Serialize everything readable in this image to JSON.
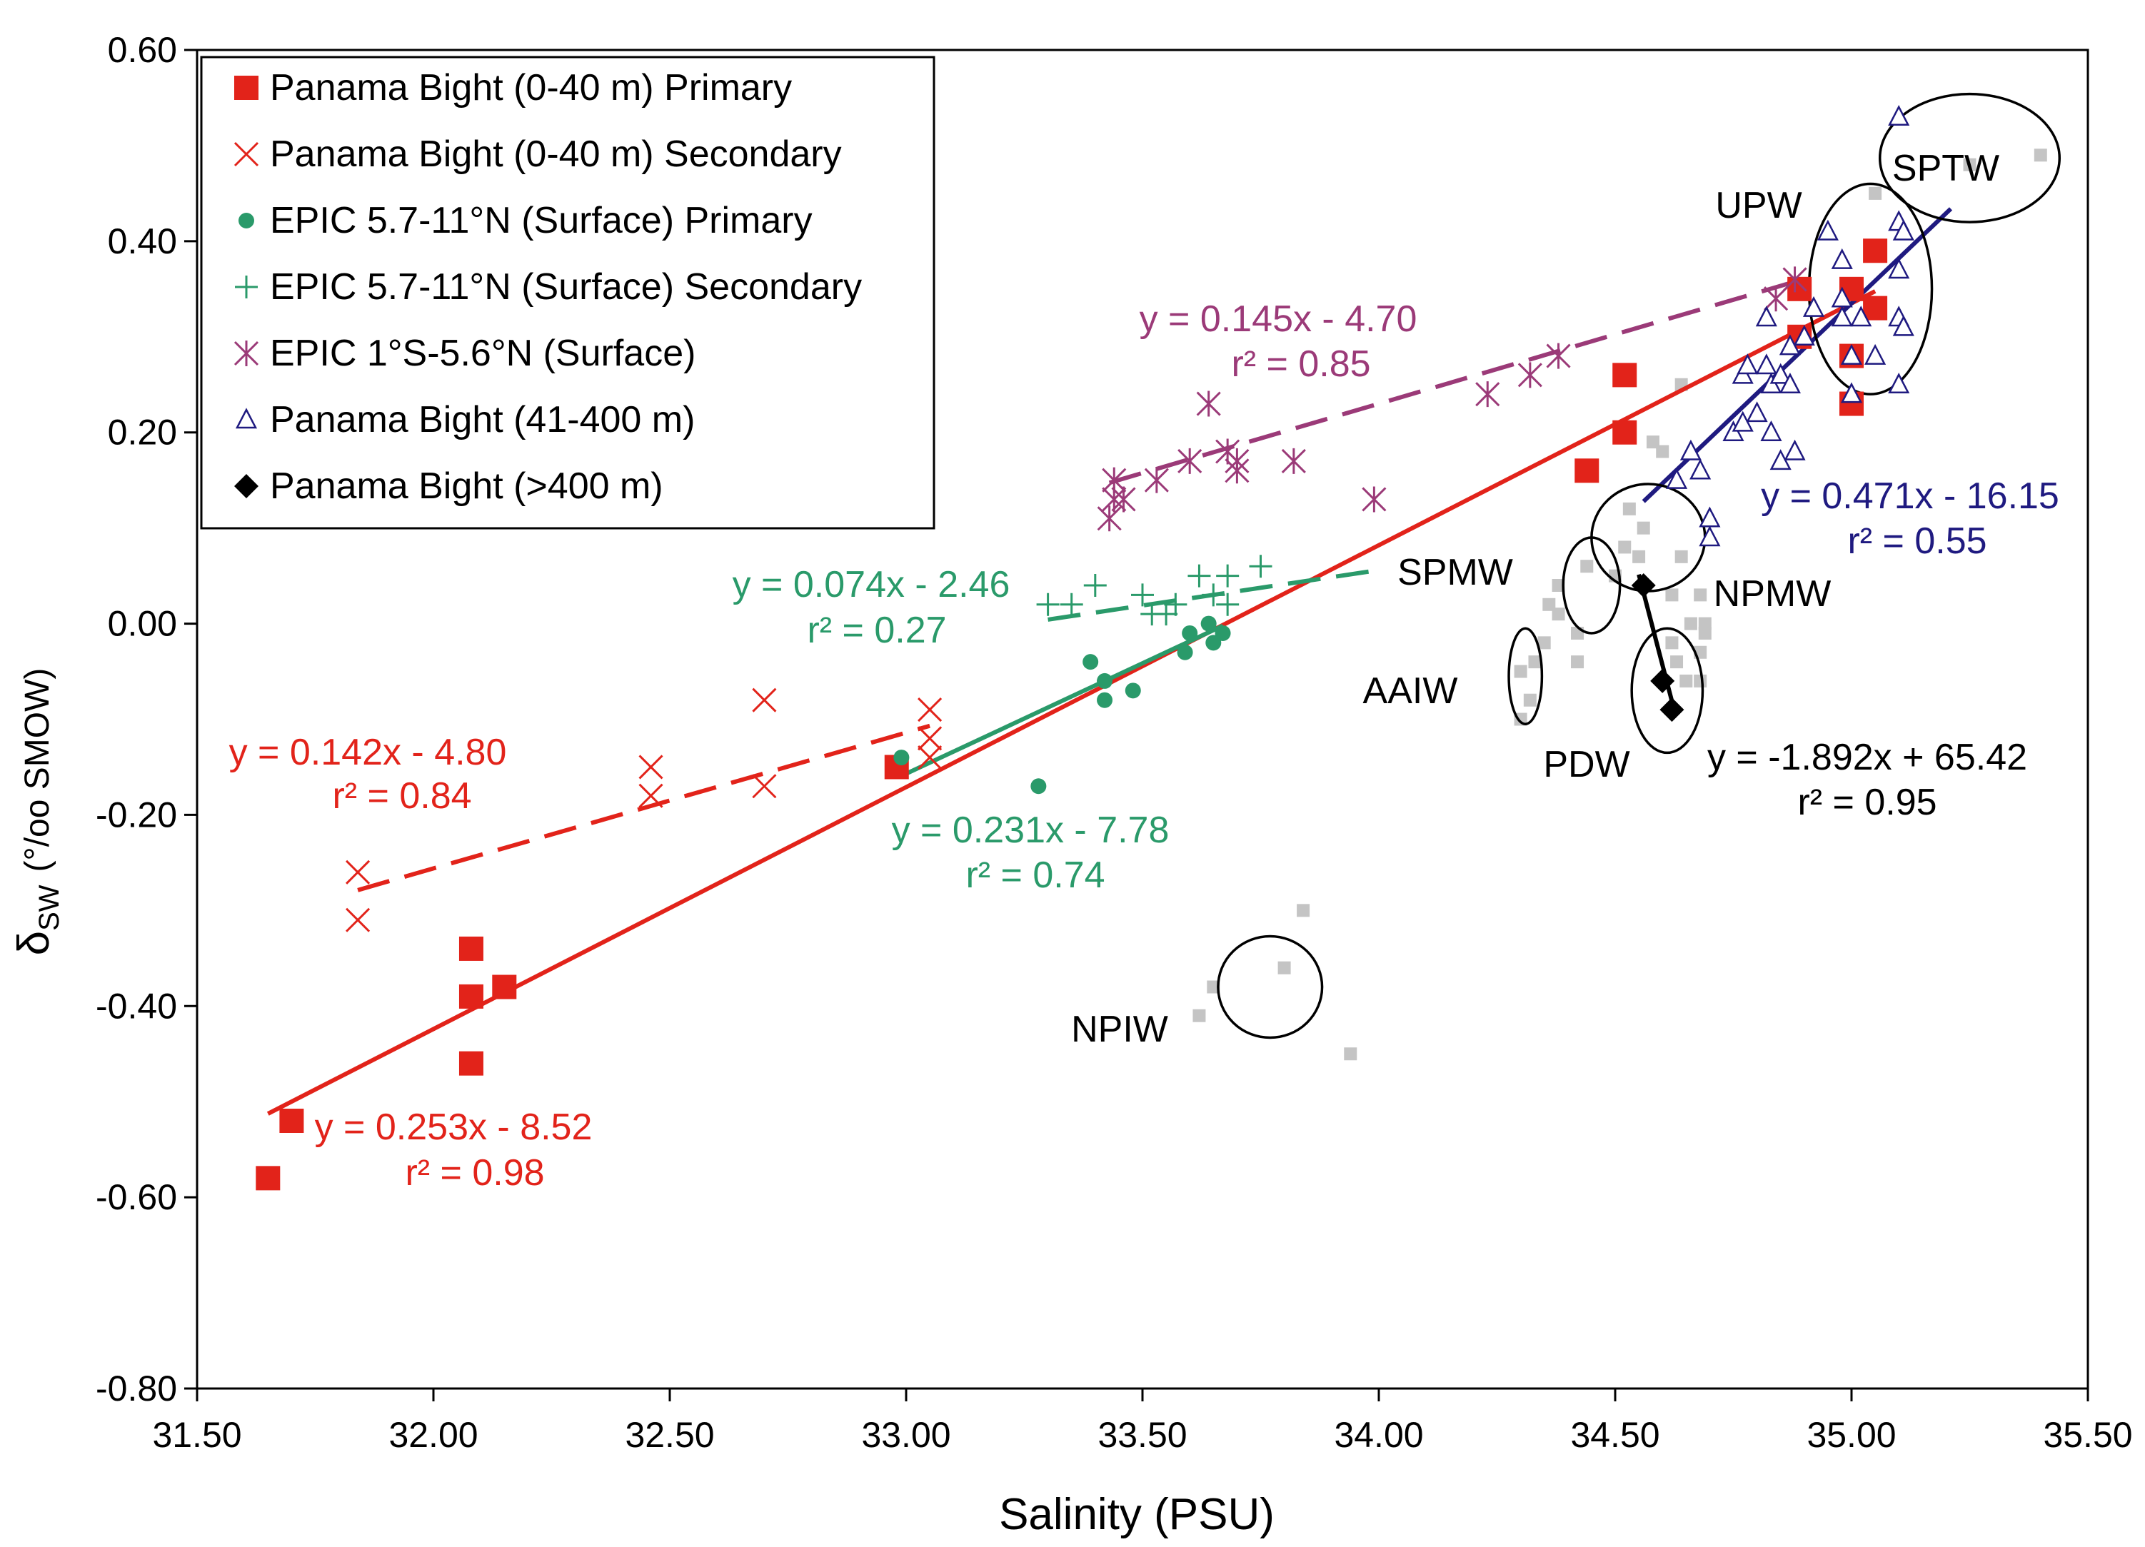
{
  "chart_data": {
    "type": "scatter",
    "xlabel": "Salinity (PSU)",
    "ylabel": {
      "main": "δ",
      "sub": "SW",
      "unit": "(°/oo SMOW)"
    },
    "xlim": [
      31.5,
      35.5
    ],
    "ylim": [
      -0.8,
      0.6
    ],
    "xticks": [
      31.5,
      32.0,
      32.5,
      33.0,
      33.5,
      34.0,
      34.5,
      35.0,
      35.5
    ],
    "yticks": [
      -0.8,
      -0.6,
      -0.4,
      -0.2,
      0.0,
      0.2,
      0.4,
      0.6
    ],
    "xtick_labels": [
      "31.50",
      "32.00",
      "32.50",
      "33.00",
      "33.50",
      "34.00",
      "34.50",
      "35.00",
      "35.50"
    ],
    "ytick_labels": [
      "-0.80",
      "-0.60",
      "-0.40",
      "-0.20",
      "0.00",
      "0.20",
      "0.40",
      "0.60"
    ],
    "grid": false,
    "legend_position": "top-left",
    "colors": {
      "red": "#e2231a",
      "green": "#2a9a6a",
      "purple": "#9b3a78",
      "navy": "#1f1a80",
      "black": "#000000",
      "gray": "#c4c4c4"
    },
    "series": [
      {
        "name": "Panama Bight (0-40 m) Primary",
        "marker": "square",
        "color": "#e2231a",
        "points": [
          [
            31.65,
            -0.58
          ],
          [
            31.7,
            -0.52
          ],
          [
            32.08,
            -0.34
          ],
          [
            32.08,
            -0.39
          ],
          [
            32.08,
            -0.46
          ],
          [
            32.15,
            -0.38
          ],
          [
            32.98,
            -0.15
          ],
          [
            34.44,
            0.16
          ],
          [
            34.52,
            0.26
          ],
          [
            34.52,
            0.2
          ],
          [
            34.89,
            0.35
          ],
          [
            34.89,
            0.3
          ],
          [
            35.0,
            0.35
          ],
          [
            35.0,
            0.28
          ],
          [
            35.0,
            0.23
          ],
          [
            35.05,
            0.39
          ],
          [
            35.05,
            0.33
          ]
        ]
      },
      {
        "name": "Panama Bight (0-40 m) Secondary",
        "marker": "x",
        "color": "#e2231a",
        "points": [
          [
            31.84,
            -0.26
          ],
          [
            31.84,
            -0.31
          ],
          [
            32.46,
            -0.15
          ],
          [
            32.46,
            -0.18
          ],
          [
            32.7,
            -0.08
          ],
          [
            32.7,
            -0.17
          ],
          [
            33.05,
            -0.09
          ],
          [
            33.05,
            -0.12
          ],
          [
            33.05,
            -0.14
          ]
        ]
      },
      {
        "name": "EPIC 5.7-11°N (Surface) Primary",
        "marker": "circle",
        "color": "#2a9a6a",
        "points": [
          [
            32.99,
            -0.14
          ],
          [
            33.28,
            -0.17
          ],
          [
            33.39,
            -0.04
          ],
          [
            33.42,
            -0.06
          ],
          [
            33.42,
            -0.08
          ],
          [
            33.48,
            -0.07
          ],
          [
            33.59,
            -0.03
          ],
          [
            33.6,
            -0.01
          ],
          [
            33.64,
            0.0
          ],
          [
            33.65,
            -0.02
          ],
          [
            33.67,
            -0.01
          ]
        ]
      },
      {
        "name": "EPIC 5.7-11°N (Surface) Secondary",
        "marker": "plus",
        "color": "#2a9a6a",
        "points": [
          [
            33.3,
            0.02
          ],
          [
            33.35,
            0.02
          ],
          [
            33.4,
            0.04
          ],
          [
            33.5,
            0.03
          ],
          [
            33.52,
            0.01
          ],
          [
            33.55,
            0.01
          ],
          [
            33.57,
            0.02
          ],
          [
            33.62,
            0.05
          ],
          [
            33.65,
            0.03
          ],
          [
            33.68,
            0.02
          ],
          [
            33.68,
            0.05
          ],
          [
            33.75,
            0.06
          ]
        ]
      },
      {
        "name": "EPIC 1°S-5.6°N (Surface)",
        "marker": "asterisk",
        "color": "#9b3a78",
        "points": [
          [
            33.44,
            0.15
          ],
          [
            33.44,
            0.13
          ],
          [
            33.43,
            0.11
          ],
          [
            33.46,
            0.13
          ],
          [
            33.53,
            0.15
          ],
          [
            33.6,
            0.17
          ],
          [
            33.64,
            0.23
          ],
          [
            33.68,
            0.18
          ],
          [
            33.7,
            0.16
          ],
          [
            33.7,
            0.17
          ],
          [
            33.82,
            0.17
          ],
          [
            33.99,
            0.13
          ],
          [
            34.23,
            0.24
          ],
          [
            34.32,
            0.26
          ],
          [
            34.38,
            0.28
          ],
          [
            34.84,
            0.34
          ],
          [
            34.88,
            0.36
          ]
        ]
      },
      {
        "name": "Panama Bight (41-400 m)",
        "marker": "triangle",
        "color": "#1f1a80",
        "points": [
          [
            34.63,
            0.15
          ],
          [
            34.66,
            0.18
          ],
          [
            34.68,
            0.16
          ],
          [
            34.7,
            0.11
          ],
          [
            34.7,
            0.09
          ],
          [
            34.75,
            0.2
          ],
          [
            34.77,
            0.21
          ],
          [
            34.77,
            0.26
          ],
          [
            34.78,
            0.27
          ],
          [
            34.8,
            0.22
          ],
          [
            34.82,
            0.27
          ],
          [
            34.82,
            0.32
          ],
          [
            34.83,
            0.25
          ],
          [
            34.83,
            0.2
          ],
          [
            34.85,
            0.26
          ],
          [
            34.85,
            0.17
          ],
          [
            34.87,
            0.25
          ],
          [
            34.87,
            0.29
          ],
          [
            34.88,
            0.18
          ],
          [
            34.9,
            0.3
          ],
          [
            34.92,
            0.33
          ],
          [
            34.95,
            0.41
          ],
          [
            34.98,
            0.34
          ],
          [
            34.98,
            0.32
          ],
          [
            34.98,
            0.38
          ],
          [
            35.0,
            0.28
          ],
          [
            35.0,
            0.24
          ],
          [
            35.02,
            0.32
          ],
          [
            35.05,
            0.28
          ],
          [
            35.1,
            0.53
          ],
          [
            35.1,
            0.42
          ],
          [
            35.1,
            0.37
          ],
          [
            35.1,
            0.32
          ],
          [
            35.1,
            0.25
          ],
          [
            35.11,
            0.41
          ],
          [
            35.11,
            0.31
          ]
        ]
      },
      {
        "name": "Panama Bight (>400 m)",
        "marker": "diamond",
        "color": "#000000",
        "points": [
          [
            34.56,
            0.04
          ],
          [
            34.6,
            -0.06
          ],
          [
            34.62,
            -0.09
          ]
        ]
      }
    ],
    "background_points": [
      [
        33.62,
        -0.41
      ],
      [
        33.65,
        -0.38
      ],
      [
        33.8,
        -0.36
      ],
      [
        33.84,
        -0.3
      ],
      [
        33.94,
        -0.45
      ],
      [
        34.3,
        -0.05
      ],
      [
        34.3,
        -0.1
      ],
      [
        34.32,
        -0.08
      ],
      [
        34.33,
        -0.04
      ],
      [
        34.35,
        -0.02
      ],
      [
        34.36,
        0.02
      ],
      [
        34.38,
        0.04
      ],
      [
        34.38,
        0.01
      ],
      [
        34.42,
        -0.01
      ],
      [
        34.42,
        -0.04
      ],
      [
        34.44,
        0.06
      ],
      [
        34.5,
        0.05
      ],
      [
        34.52,
        0.08
      ],
      [
        34.53,
        0.12
      ],
      [
        34.55,
        0.07
      ],
      [
        34.56,
        0.1
      ],
      [
        34.58,
        0.19
      ],
      [
        34.6,
        0.18
      ],
      [
        34.62,
        0.03
      ],
      [
        34.62,
        -0.02
      ],
      [
        34.63,
        -0.04
      ],
      [
        34.64,
        0.07
      ],
      [
        34.64,
        0.25
      ],
      [
        34.65,
        -0.06
      ],
      [
        34.66,
        0.0
      ],
      [
        34.68,
        -0.06
      ],
      [
        34.68,
        0.03
      ],
      [
        34.68,
        -0.03
      ],
      [
        34.69,
        0.0
      ],
      [
        34.69,
        -0.01
      ],
      [
        35.05,
        0.45
      ],
      [
        35.25,
        0.48
      ],
      [
        35.4,
        0.49
      ]
    ],
    "fits": [
      {
        "label": "y = 0.253x - 8.52",
        "r2_label": "r² = 0.98",
        "slope": 0.253,
        "intercept": -8.52,
        "x_range": [
          31.65,
          35.05
        ],
        "color": "#e2231a",
        "dashed": false
      },
      {
        "label": "y = 0.142x - 4.80",
        "r2_label": "r² = 0.84",
        "slope": 0.142,
        "intercept": -4.8,
        "x_range": [
          31.84,
          33.05
        ],
        "color": "#e2231a",
        "dashed": true
      },
      {
        "label": "y = 0.231x - 7.78",
        "r2_label": "r² = 0.74",
        "slope": 0.231,
        "intercept": -7.78,
        "x_range": [
          32.99,
          33.67
        ],
        "color": "#2a9a6a",
        "dashed": false
      },
      {
        "label": "y = 0.074x - 2.46",
        "r2_label": "r² = 0.27",
        "slope": 0.074,
        "intercept": -2.46,
        "x_range": [
          33.3,
          33.99
        ],
        "color": "#2a9a6a",
        "dashed": true
      },
      {
        "label": "y = 0.145x - 4.70",
        "r2_label": "r² = 0.85",
        "slope": 0.145,
        "intercept": -4.7,
        "x_range": [
          33.43,
          34.88
        ],
        "color": "#9b3a78",
        "dashed": true
      },
      {
        "label": "y = 0.471x - 16.15",
        "r2_label": "r² = 0.55",
        "slope": 0.471,
        "intercept": -16.15,
        "x_range": [
          34.56,
          35.21
        ],
        "color": "#1f1a80",
        "dashed": false
      },
      {
        "label": "y = -1.892x + 65.42",
        "r2_label": "r² = 0.95",
        "slope": -1.892,
        "intercept": 65.42,
        "x_range": [
          34.55,
          34.62
        ],
        "color": "#000000",
        "dashed": false
      }
    ],
    "water_masses": [
      {
        "label": "SPTW",
        "cx": 35.25,
        "cy": 0.487,
        "rx": 0.19,
        "ry": 0.067
      },
      {
        "label": "UPW",
        "cx": 35.04,
        "cy": 0.35,
        "rx": 0.13,
        "ry": 0.11
      },
      {
        "label": "NPMW",
        "cx": 34.57,
        "cy": 0.09,
        "rx": 0.12,
        "ry": 0.056
      },
      {
        "label": "SPMW",
        "cx": 34.45,
        "cy": 0.04,
        "rx": 0.06,
        "ry": 0.05
      },
      {
        "label": "AAIW",
        "cx": 34.31,
        "cy": -0.055,
        "rx": 0.035,
        "ry": 0.05
      },
      {
        "label": "PDW",
        "cx": 34.61,
        "cy": -0.07,
        "rx": 0.075,
        "ry": 0.065
      },
      {
        "label": "NPIW",
        "cx": 33.77,
        "cy": -0.38,
        "rx": 0.11,
        "ry": 0.053
      }
    ]
  }
}
